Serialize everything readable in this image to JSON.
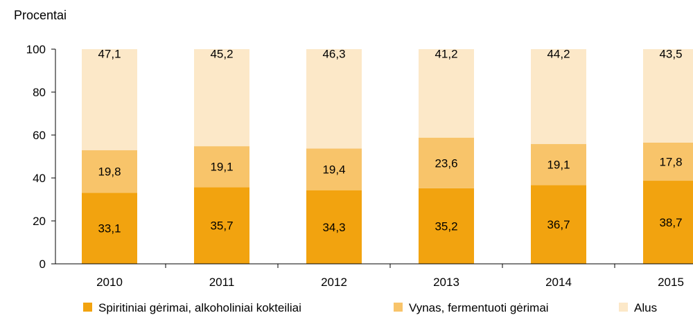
{
  "chart_data": {
    "type": "bar",
    "stacked": true,
    "title": "",
    "ylabel": "Procentai",
    "xlabel": "",
    "ylim": [
      0,
      100
    ],
    "yticks": [
      0,
      20,
      40,
      60,
      80,
      100
    ],
    "grid": false,
    "legend_position": "bottom",
    "categories": [
      "2010",
      "2011",
      "2012",
      "2013",
      "2014",
      "2015"
    ],
    "series": [
      {
        "name": "Spiritiniai gėrimai, alkoholiniai kokteiliai",
        "color": "#F2A30F",
        "values": [
          33.1,
          35.7,
          34.3,
          35.2,
          36.7,
          38.7
        ],
        "labels": [
          "33,1",
          "35,7",
          "34,3",
          "35,2",
          "36,7",
          "38,7"
        ]
      },
      {
        "name": "Vynas, fermentuoti gėrimai",
        "color": "#F8C46A",
        "values": [
          19.8,
          19.1,
          19.4,
          23.6,
          19.1,
          17.8
        ],
        "labels": [
          "19,8",
          "19,1",
          "19,4",
          "23,6",
          "19,1",
          "17,8"
        ]
      },
      {
        "name": "Alus",
        "color": "#FCE8C8",
        "values": [
          47.1,
          45.2,
          46.3,
          41.2,
          44.2,
          43.5
        ],
        "labels": [
          "47,1",
          "45,2",
          "46,3",
          "41,2",
          "44,2",
          "43,5"
        ]
      }
    ]
  }
}
